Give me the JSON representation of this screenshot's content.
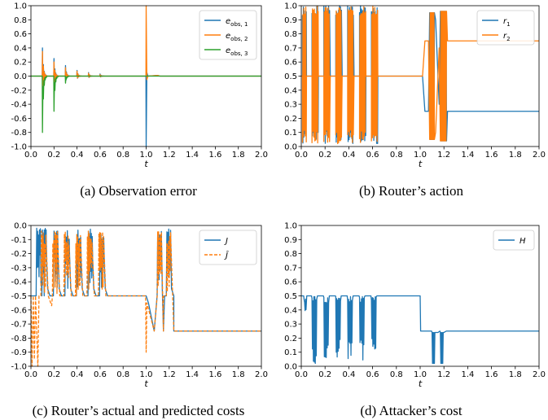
{
  "panels": [
    {
      "caption": "(a) Observation error",
      "xlabel": "t",
      "xlim": [
        0,
        2.0
      ],
      "ylim": [
        -1.0,
        1.0
      ],
      "xticks": [
        "0.0",
        "0.2",
        "0.4",
        "0.6",
        "0.8",
        "1.0",
        "1.2",
        "1.4",
        "1.6",
        "1.8",
        "2.0"
      ],
      "yticks": [
        "1.0",
        "0.8",
        "0.6",
        "0.4",
        "0.2",
        "0.0",
        "-0.2",
        "-0.4",
        "-0.6",
        "-0.8",
        "-1.0"
      ],
      "legend": [
        "e_obs,1",
        "e_obs,2",
        "e_obs,3"
      ],
      "legend_position": "top-right"
    },
    {
      "caption": "(b) Router’s action",
      "xlabel": "t",
      "xlim": [
        0,
        2.0
      ],
      "ylim": [
        0.0,
        1.0
      ],
      "xticks": [
        "0.0",
        "0.2",
        "0.4",
        "0.6",
        "0.8",
        "1.0",
        "1.2",
        "1.4",
        "1.6",
        "1.8",
        "2.0"
      ],
      "yticks": [
        "1.0",
        "0.9",
        "0.8",
        "0.7",
        "0.6",
        "0.5",
        "0.4",
        "0.3",
        "0.2",
        "0.1",
        "0.0"
      ],
      "legend": [
        "r_1",
        "r_2"
      ],
      "legend_position": "top-right"
    },
    {
      "caption": "(c) Router’s actual and predicted costs",
      "xlabel": "t",
      "xlim": [
        0,
        2.0
      ],
      "ylim": [
        -1.0,
        0.0
      ],
      "xticks": [
        "0.0",
        "0.2",
        "0.4",
        "0.6",
        "0.8",
        "1.0",
        "1.2",
        "1.4",
        "1.6",
        "1.8",
        "2.0"
      ],
      "yticks": [
        "0.0",
        "-0.1",
        "-0.2",
        "-0.3",
        "-0.4",
        "-0.5",
        "-0.6",
        "-0.7",
        "-0.8",
        "-0.9",
        "-1.0"
      ],
      "legend": [
        "J",
        "Ĵ"
      ],
      "legend_position": "top-right"
    },
    {
      "caption": "(d) Attacker’s cost",
      "xlabel": "t",
      "xlim": [
        0,
        2.0
      ],
      "ylim": [
        0.0,
        1.0
      ],
      "xticks": [
        "0.0",
        "0.2",
        "0.4",
        "0.6",
        "0.8",
        "1.0",
        "1.2",
        "1.4",
        "1.6",
        "1.8",
        "2.0"
      ],
      "yticks": [
        "1.0",
        "0.9",
        "0.8",
        "0.7",
        "0.6",
        "0.5",
        "0.4",
        "0.3",
        "0.2",
        "0.1",
        "0.0"
      ],
      "legend": [
        "H"
      ],
      "legend_position": "top-right"
    }
  ],
  "colors": {
    "blue": "#1f77b4",
    "orange": "#ff7f0e",
    "green": "#2ca02c"
  },
  "chart_data": [
    {
      "type": "line",
      "x_range": [
        0,
        2.0
      ],
      "ylim": [
        -1.0,
        1.0
      ],
      "series": [
        {
          "name": "e_obs,1",
          "bursts": [
            [
              0.1,
              0.4
            ],
            [
              0.2,
              0.25
            ],
            [
              0.3,
              0.15
            ],
            [
              0.4,
              0.08
            ],
            [
              0.5,
              0.05
            ],
            [
              0.6,
              0.03
            ]
          ],
          "spike_at": 1.0,
          "spike": -1.0,
          "baseline": 0.0
        },
        {
          "name": "e_obs,2",
          "bursts": [
            [
              0.1,
              0.35
            ],
            [
              0.2,
              0.2
            ],
            [
              0.3,
              0.12
            ],
            [
              0.4,
              0.07
            ],
            [
              0.5,
              0.04
            ],
            [
              0.6,
              0.02
            ]
          ],
          "spike_at": 1.0,
          "spike": 1.0,
          "baseline": 0.0
        },
        {
          "name": "e_obs,3",
          "bursts": [
            [
              0.1,
              -0.8
            ],
            [
              0.2,
              -0.5
            ],
            [
              0.3,
              -0.1
            ]
          ],
          "baseline": 0.0
        }
      ]
    },
    {
      "type": "line",
      "x_range": [
        0,
        2.0
      ],
      "ylim": [
        0.0,
        1.0
      ],
      "series": [
        {
          "name": "r_1",
          "before_1": 0.5,
          "oscillation_windows": [
            [
              0.0,
              0.6
            ],
            [
              1.05,
              1.22
            ]
          ],
          "after_1_2": 0.25
        },
        {
          "name": "r_2",
          "before_1": 0.5,
          "oscillation_windows": [
            [
              0.0,
              0.6
            ],
            [
              1.05,
              1.22
            ]
          ],
          "after_1_2": 0.75
        }
      ]
    },
    {
      "type": "line",
      "x_range": [
        0,
        2.0
      ],
      "ylim": [
        -1.0,
        0.0
      ],
      "series": [
        {
          "name": "J",
          "baseline_before_1": -0.5,
          "peaks": [
            0.1,
            0.2,
            0.3,
            0.4,
            0.5,
            0.6,
            1.1,
            1.2
          ],
          "peak_value": -0.02,
          "after_1_2": -0.75
        },
        {
          "name": "Ĵ",
          "baseline_before_1": -0.5,
          "dips": [
            [
              0.0,
              -1.0
            ],
            [
              0.05,
              -1.0
            ],
            [
              0.2,
              -0.57
            ],
            [
              1.0,
              -0.9
            ]
          ],
          "after_1_2": -0.75,
          "style": "dashed"
        }
      ]
    },
    {
      "type": "line",
      "x_range": [
        0,
        2.0
      ],
      "ylim": [
        0.0,
        1.0
      ],
      "series": [
        {
          "name": "H",
          "baseline_before_1": 0.5,
          "dip_windows": [
            [
              0.1,
              0.02
            ],
            [
              0.2,
              0.05
            ],
            [
              0.3,
              0.05
            ],
            [
              0.4,
              0.03
            ],
            [
              0.5,
              0.04
            ],
            [
              0.6,
              0.05
            ]
          ],
          "plateau_1_0_to_1_1": 0.25,
          "dip_windows_late": [
            [
              1.1,
              0.02
            ],
            [
              1.2,
              0.02
            ]
          ],
          "after_1_2": 0.25
        }
      ]
    }
  ]
}
